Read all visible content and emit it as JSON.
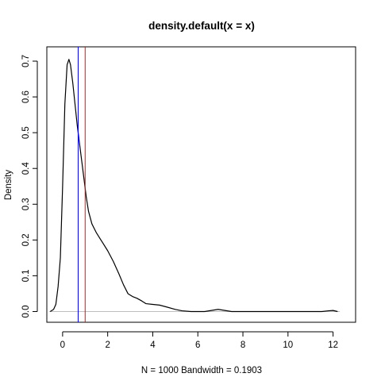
{
  "chart_data": {
    "type": "line",
    "title": "density.default(x = x)",
    "xlabel": "N = 1000   Bandwidth = 0.1903",
    "ylabel": "Density",
    "xlim": [
      -0.7,
      13.0
    ],
    "ylim": [
      -0.03,
      0.74
    ],
    "x_ticks": [
      0,
      2,
      4,
      6,
      8,
      10,
      12
    ],
    "y_ticks": [
      0.0,
      0.1,
      0.2,
      0.3,
      0.4,
      0.5,
      0.6,
      0.7
    ],
    "x_tick_labels": [
      "0",
      "2",
      "4",
      "6",
      "8",
      "10",
      "12"
    ],
    "y_tick_labels": [
      "0.0",
      "0.1",
      "0.2",
      "0.3",
      "0.4",
      "0.5",
      "0.6",
      "0.7"
    ],
    "grid": false,
    "baseline": {
      "y": 0,
      "x_from": -0.6,
      "x_to": 12.3,
      "color": "#bebebe"
    },
    "series": [
      {
        "color": "#000000",
        "points": [
          [
            -0.55,
            0.0
          ],
          [
            -0.4,
            0.006
          ],
          [
            -0.3,
            0.02
          ],
          [
            -0.2,
            0.07
          ],
          [
            -0.1,
            0.15
          ],
          [
            0.0,
            0.35
          ],
          [
            0.1,
            0.58
          ],
          [
            0.2,
            0.69
          ],
          [
            0.28,
            0.705
          ],
          [
            0.35,
            0.69
          ],
          [
            0.45,
            0.64
          ],
          [
            0.55,
            0.58
          ],
          [
            0.65,
            0.52
          ],
          [
            0.75,
            0.47
          ],
          [
            0.85,
            0.42
          ],
          [
            0.95,
            0.37
          ],
          [
            1.05,
            0.32
          ],
          [
            1.15,
            0.28
          ],
          [
            1.3,
            0.245
          ],
          [
            1.5,
            0.22
          ],
          [
            1.75,
            0.195
          ],
          [
            2.0,
            0.17
          ],
          [
            2.25,
            0.14
          ],
          [
            2.5,
            0.105
          ],
          [
            2.7,
            0.075
          ],
          [
            2.9,
            0.05
          ],
          [
            3.1,
            0.042
          ],
          [
            3.3,
            0.037
          ],
          [
            3.5,
            0.03
          ],
          [
            3.7,
            0.022
          ],
          [
            4.0,
            0.02
          ],
          [
            4.3,
            0.018
          ],
          [
            4.6,
            0.013
          ],
          [
            5.0,
            0.006
          ],
          [
            5.3,
            0.002
          ],
          [
            5.7,
            0.0
          ],
          [
            6.0,
            0.0
          ],
          [
            6.3,
            0.0
          ],
          [
            6.6,
            0.003
          ],
          [
            6.9,
            0.006
          ],
          [
            7.2,
            0.003
          ],
          [
            7.5,
            0.0
          ],
          [
            9.0,
            0.0
          ],
          [
            11.5,
            0.0
          ],
          [
            11.8,
            0.002
          ],
          [
            12.0,
            0.003
          ],
          [
            12.2,
            0.0
          ]
        ]
      }
    ],
    "vlines": [
      {
        "x": 0.69,
        "color": "#0000ff"
      },
      {
        "x": 1.0,
        "color": "#ff0000"
      }
    ]
  }
}
